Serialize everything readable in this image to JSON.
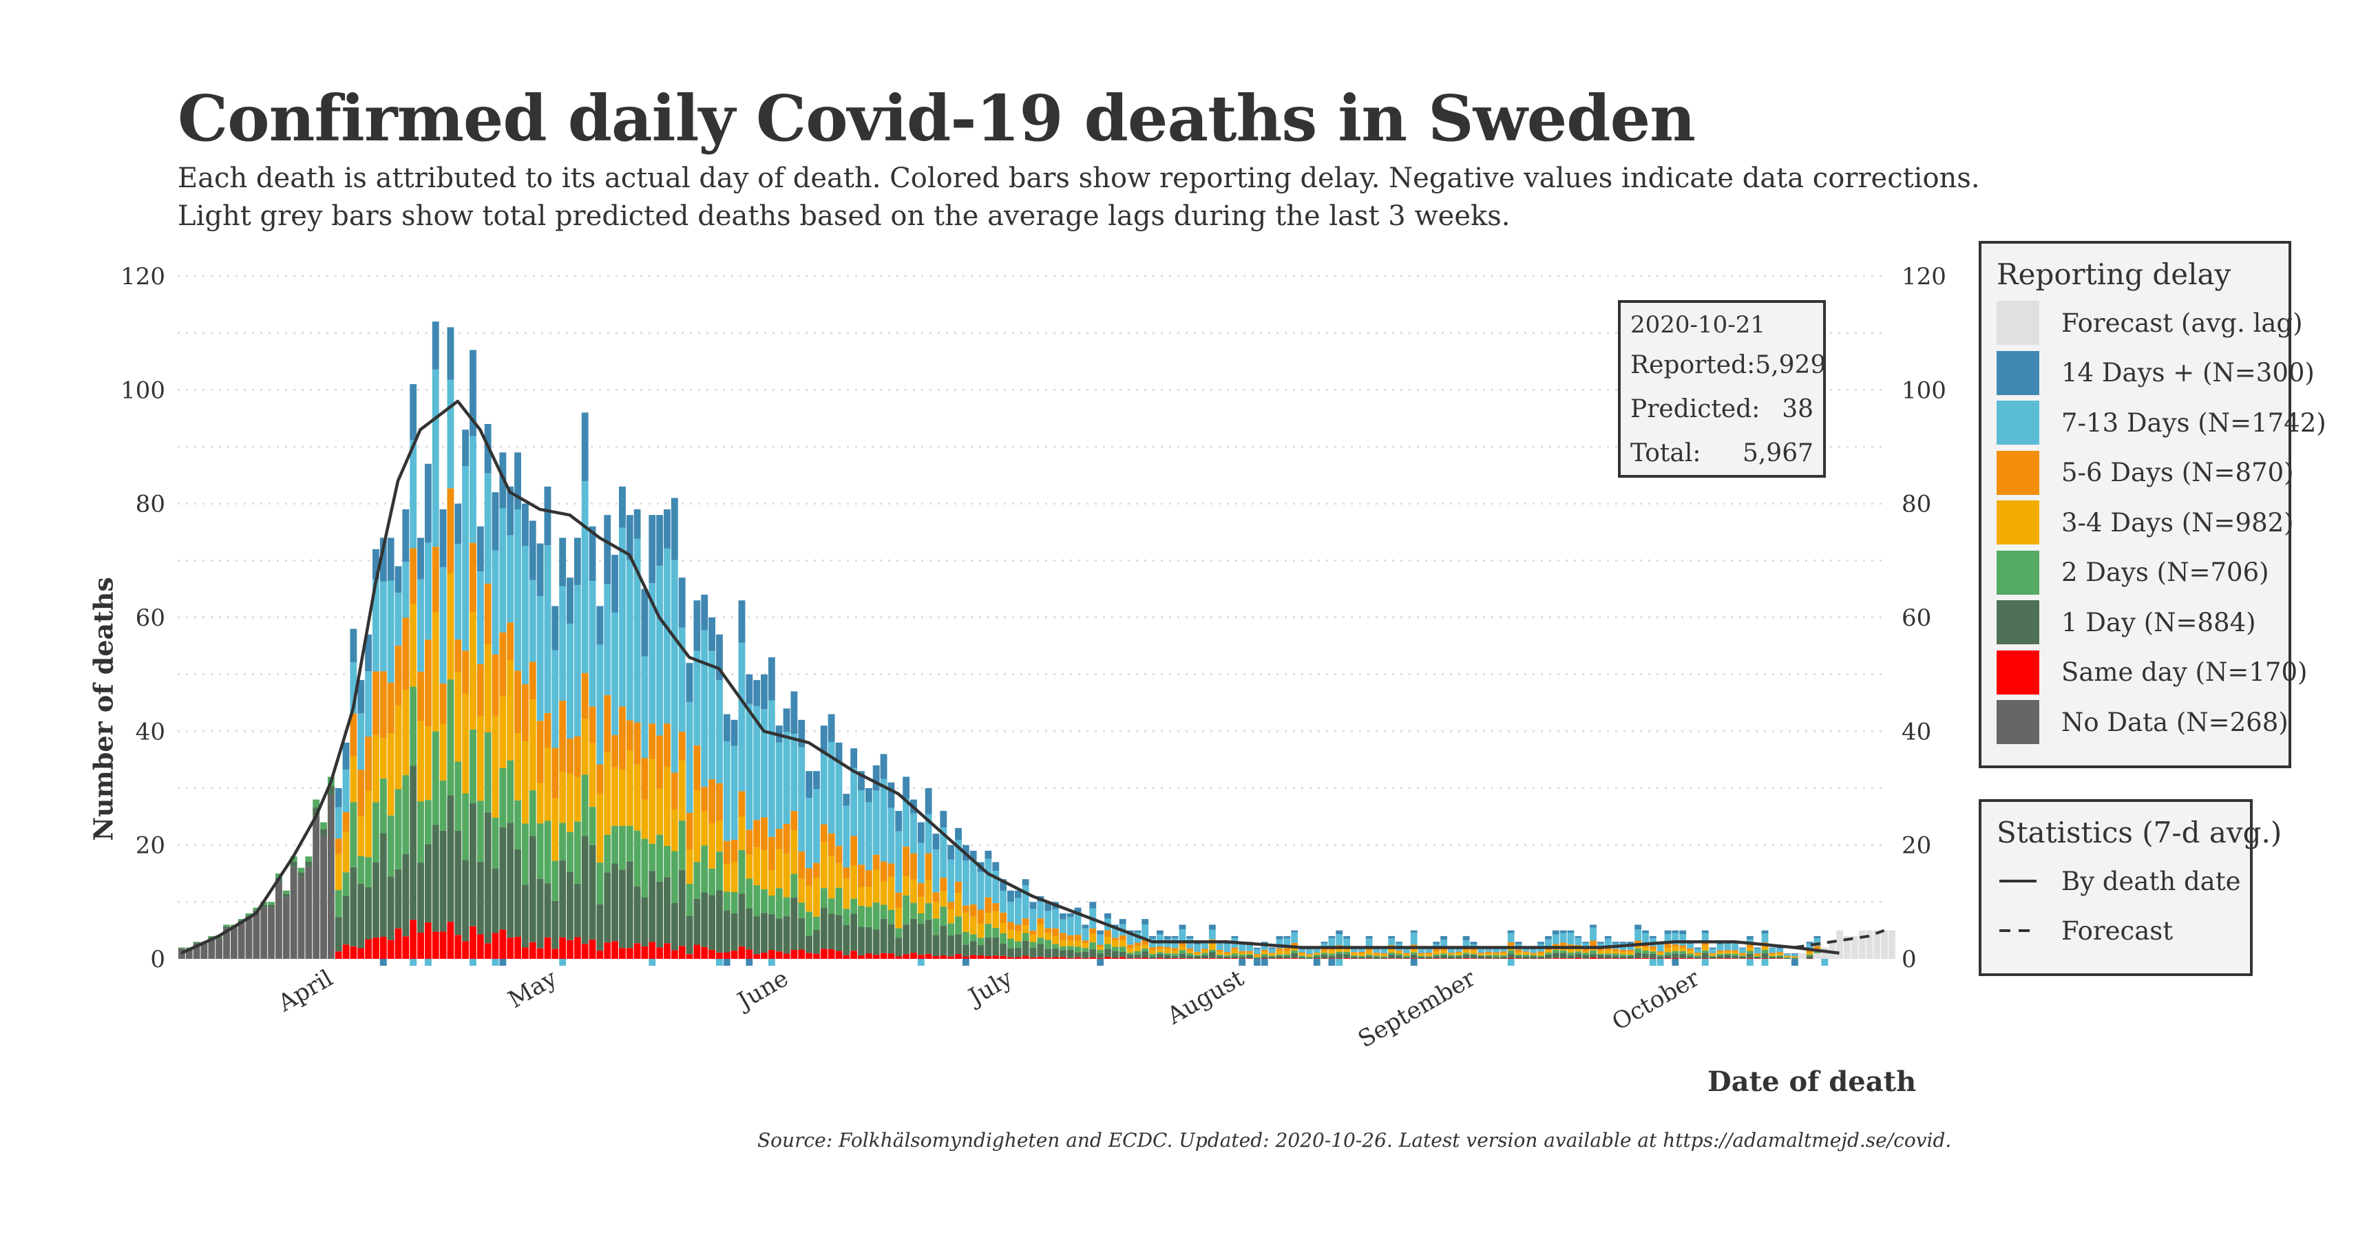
{
  "title": "Confirmed daily Covid-19 deaths in Sweden",
  "subtitle_line1": "Each death is attributed to its actual day of death. Colored bars show reporting delay. Negative values indicate data corrections.",
  "subtitle_line2": "Light grey bars show total predicted deaths based on the average lags during the last 3 weeks.",
  "caption": "Source: Folkhälsomyndigheten and ECDC. Updated: 2020-10-26. Latest version available at https://adamaltmejd.se/covid.",
  "annotation": {
    "date": "2020-10-21",
    "reported_label": "Reported:",
    "reported_value": "5,929",
    "predicted_label": "Predicted:",
    "predicted_value": "38",
    "total_label": "Total:",
    "total_value": "5,967"
  },
  "legend_delay": {
    "title": "Reporting delay",
    "items": [
      {
        "label": "Forecast (avg. lag)",
        "color": "#e0e0e0"
      },
      {
        "label": "14 Days + (N=300)",
        "color": "#3f88b2"
      },
      {
        "label": "7-13 Days (N=1742)",
        "color": "#5bbcd6"
      },
      {
        "label": "5-6 Days (N=870)",
        "color": "#f28e0a"
      },
      {
        "label": "3-4 Days (N=982)",
        "color": "#f2ad00"
      },
      {
        "label": "2 Days (N=706)",
        "color": "#54aa61"
      },
      {
        "label": "1 Day (N=884)",
        "color": "#4e7155"
      },
      {
        "label": "Same day (N=170)",
        "color": "#ff0000"
      },
      {
        "label": "No Data (N=268)",
        "color": "#666666"
      }
    ]
  },
  "legend_stats": {
    "title": "Statistics (7-d avg.)",
    "items": [
      {
        "label": "By death date",
        "style": "solid"
      },
      {
        "label": "Forecast",
        "style": "dashed"
      }
    ]
  },
  "chart_data": {
    "type": "bar",
    "stacked": true,
    "title": "Confirmed daily Covid-19 deaths in Sweden",
    "xlabel": "Date of death",
    "ylabel": "Number of deaths",
    "x_start": "2020-03-11",
    "x_end": "2020-10-26",
    "ylim": [
      0,
      120
    ],
    "yticks": [
      0,
      20,
      40,
      60,
      80,
      100,
      120
    ],
    "ytick_labels": [
      "0",
      "20",
      "40",
      "60",
      "80",
      "100",
      "120"
    ],
    "month_ticks": [
      {
        "label": "April",
        "date": "2020-04-01"
      },
      {
        "label": "May",
        "date": "2020-05-01"
      },
      {
        "label": "June",
        "date": "2020-06-01"
      },
      {
        "label": "July",
        "date": "2020-07-01"
      },
      {
        "label": "August",
        "date": "2020-08-01"
      },
      {
        "label": "September",
        "date": "2020-09-01"
      },
      {
        "label": "October",
        "date": "2020-10-01"
      }
    ],
    "series_order": [
      "No Data",
      "Same day",
      "1 Day",
      "2 Days",
      "3-4 Days",
      "5-6 Days",
      "7-13 Days",
      "14 Days +"
    ],
    "series_colors": [
      "#666666",
      "#ff0000",
      "#4e7155",
      "#54aa61",
      "#f2ad00",
      "#f28e0a",
      "#5bbcd6",
      "#3f88b2"
    ],
    "total_anchors": [
      [
        0,
        2
      ],
      [
        5,
        4
      ],
      [
        10,
        8
      ],
      [
        15,
        16
      ],
      [
        18,
        24
      ],
      [
        20,
        30
      ],
      [
        22,
        40
      ],
      [
        25,
        60
      ],
      [
        28,
        85
      ],
      [
        31,
        93
      ],
      [
        34,
        98
      ],
      [
        38,
        98
      ],
      [
        42,
        84
      ],
      [
        48,
        78
      ],
      [
        55,
        80
      ],
      [
        62,
        71
      ],
      [
        66,
        70
      ],
      [
        70,
        57
      ],
      [
        75,
        53
      ],
      [
        80,
        42
      ],
      [
        85,
        39
      ],
      [
        90,
        34
      ],
      [
        95,
        30
      ],
      [
        100,
        26
      ],
      [
        105,
        21
      ],
      [
        110,
        15
      ],
      [
        115,
        11
      ],
      [
        120,
        8
      ],
      [
        125,
        5
      ],
      [
        130,
        4
      ],
      [
        140,
        3
      ],
      [
        160,
        2
      ],
      [
        180,
        2
      ],
      [
        200,
        3
      ],
      [
        212,
        2
      ],
      [
        218,
        1
      ],
      [
        228,
        0
      ]
    ],
    "avg_anchors": [
      [
        0,
        1
      ],
      [
        5,
        4
      ],
      [
        10,
        8
      ],
      [
        15,
        18
      ],
      [
        18,
        25
      ],
      [
        20,
        31
      ],
      [
        23,
        44
      ],
      [
        26,
        66
      ],
      [
        29,
        84
      ],
      [
        32,
        93
      ],
      [
        35,
        96
      ],
      [
        37,
        98
      ],
      [
        40,
        93
      ],
      [
        44,
        82
      ],
      [
        48,
        79
      ],
      [
        52,
        78
      ],
      [
        56,
        74
      ],
      [
        60,
        71
      ],
      [
        64,
        60
      ],
      [
        68,
        53
      ],
      [
        72,
        51
      ],
      [
        78,
        40
      ],
      [
        84,
        38
      ],
      [
        90,
        33
      ],
      [
        96,
        29
      ],
      [
        102,
        22
      ],
      [
        108,
        15
      ],
      [
        114,
        11
      ],
      [
        120,
        8
      ],
      [
        126,
        5
      ],
      [
        130,
        3
      ],
      [
        140,
        3
      ],
      [
        150,
        2
      ],
      [
        160,
        2
      ],
      [
        170,
        2
      ],
      [
        180,
        2
      ],
      [
        190,
        2
      ],
      [
        200,
        3
      ],
      [
        208,
        3
      ],
      [
        216,
        2
      ],
      [
        222,
        1
      ]
    ],
    "forecast_avg": [
      [
        216,
        2
      ],
      [
        226,
        4
      ],
      [
        228,
        5
      ]
    ],
    "forecast_bars": [
      [
        217,
        1
      ],
      [
        219,
        1
      ],
      [
        220,
        2
      ],
      [
        221,
        3
      ],
      [
        222,
        5
      ],
      [
        223,
        4
      ],
      [
        224,
        4
      ],
      [
        225,
        5
      ],
      [
        226,
        5
      ],
      [
        227,
        5
      ],
      [
        228,
        5
      ],
      [
        229,
        5
      ]
    ]
  }
}
